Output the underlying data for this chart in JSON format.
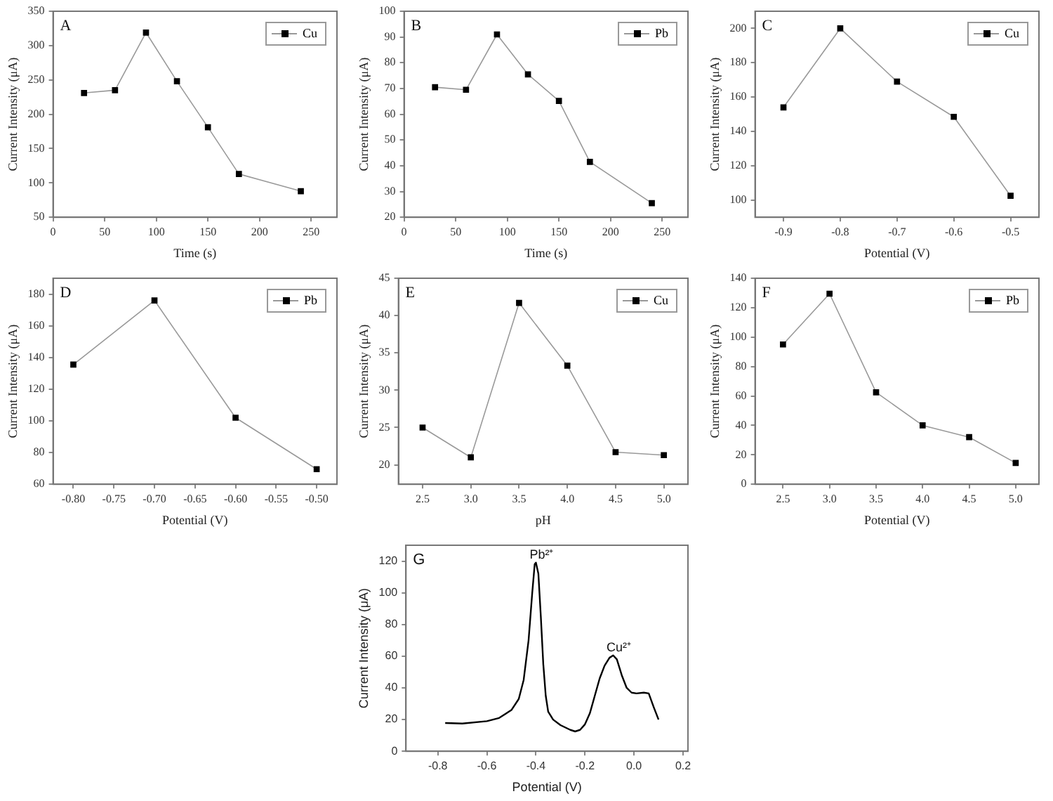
{
  "chart_data": [
    {
      "type": "line",
      "title": "A",
      "xlabel": "Time (s)",
      "ylabel": "Current Intensity (μA)",
      "x": [
        30,
        60,
        90,
        120,
        150,
        180,
        240
      ],
      "series": [
        {
          "name": "Cu",
          "color": "#000000",
          "values": [
            231,
            235,
            319,
            248,
            181,
            113,
            88
          ]
        }
      ],
      "xlim": [
        0,
        275
      ],
      "xticks": [
        0,
        50,
        100,
        150,
        200,
        250
      ],
      "ylim": [
        50,
        350
      ],
      "yticks": [
        50,
        100,
        150,
        200,
        250,
        300,
        350
      ],
      "legend": "top right",
      "marker": "square",
      "line_style": "solid"
    },
    {
      "type": "line",
      "title": "B",
      "xlabel": "Time (s)",
      "ylabel": "Current Intensity (μA)",
      "x": [
        30,
        60,
        90,
        120,
        150,
        180,
        240
      ],
      "series": [
        {
          "name": "Pb",
          "color": "#000000",
          "values": [
            70.5,
            69.5,
            91,
            75.5,
            65.2,
            41.5,
            25.5
          ]
        }
      ],
      "xlim": [
        0,
        275
      ],
      "xticks": [
        0,
        50,
        100,
        150,
        200,
        250
      ],
      "ylim": [
        20,
        100
      ],
      "yticks": [
        20,
        30,
        40,
        50,
        60,
        70,
        80,
        90,
        100
      ],
      "legend": "top right",
      "marker": "square",
      "line_style": "solid"
    },
    {
      "type": "line",
      "title": "C",
      "xlabel": "Potential (V)",
      "ylabel": "Current Intensity (μA)",
      "x": [
        -0.9,
        -0.8,
        -0.7,
        -0.6,
        -0.5
      ],
      "series": [
        {
          "name": "Cu",
          "color": "#000000",
          "values": [
            154,
            200,
            169,
            148.5,
            102.5
          ]
        }
      ],
      "xlim": [
        -0.95,
        -0.45
      ],
      "xticks": [
        -0.9,
        -0.8,
        -0.7,
        -0.6,
        -0.5
      ],
      "ylim": [
        90,
        210
      ],
      "yticks": [
        100,
        120,
        140,
        160,
        180,
        200
      ],
      "legend": "top right",
      "marker": "square",
      "line_style": "solid"
    },
    {
      "type": "line",
      "title": "D",
      "xlabel": "Potential (V)",
      "ylabel": "Current Intensity (μA)",
      "x": [
        -0.8,
        -0.7,
        -0.6,
        -0.5
      ],
      "series": [
        {
          "name": "Pb",
          "color": "#000000",
          "values": [
            135.5,
            176,
            102,
            69.5
          ]
        }
      ],
      "xlim": [
        -0.825,
        -0.475
      ],
      "xticks": [
        {
          "value": -0.8,
          "label": "-0.80"
        },
        {
          "value": -0.75,
          "label": "-0.75"
        },
        {
          "value": -0.7,
          "label": "-0.70"
        },
        {
          "value": -0.65,
          "label": "-0.65"
        },
        {
          "value": -0.6,
          "label": "-0.60"
        },
        {
          "value": -0.55,
          "label": "-0.55"
        },
        {
          "value": -0.5,
          "label": "-0.50"
        }
      ],
      "ylim": [
        60,
        190
      ],
      "yticks": [
        60,
        80,
        100,
        120,
        140,
        160,
        180
      ],
      "legend": "top right",
      "marker": "square",
      "line_style": "solid"
    },
    {
      "type": "line",
      "title": "E",
      "xlabel": "pH",
      "ylabel": "Current Intensity (μA)",
      "x": [
        2.5,
        3,
        3.5,
        4,
        4.5,
        5
      ],
      "series": [
        {
          "name": "Cu",
          "color": "#000000",
          "values": [
            25,
            21,
            41.7,
            33.3,
            21.7,
            21.3
          ]
        }
      ],
      "xlim": [
        2.25,
        5.25
      ],
      "xticks": [
        2.5,
        {
          "value": 3,
          "label": "3.0"
        },
        3.5,
        {
          "value": 4,
          "label": "4.0"
        },
        4.5,
        {
          "value": 5,
          "label": "5.0"
        }
      ],
      "ylim": [
        17.4,
        45
      ],
      "yticks": [
        20,
        25,
        30,
        35,
        40,
        45
      ],
      "legend": "top right",
      "marker": "square",
      "line_style": "solid"
    },
    {
      "type": "line",
      "title": "F",
      "xlabel": "Potential (V)",
      "ylabel": "Current Intensity (μA)",
      "x": [
        2.5,
        3,
        3.5,
        4,
        4.5,
        5
      ],
      "series": [
        {
          "name": "Pb",
          "color": "#000000",
          "values": [
            95,
            129.5,
            62.5,
            40,
            32,
            14.5
          ]
        }
      ],
      "xlim": [
        2.2,
        5.25
      ],
      "xticks": [
        2.5,
        {
          "value": 3,
          "label": "3.0"
        },
        3.5,
        {
          "value": 4,
          "label": "4.0"
        },
        4.5,
        {
          "value": 5,
          "label": "5.0"
        }
      ],
      "ylim": [
        0,
        140
      ],
      "yticks": [
        0,
        20,
        40,
        60,
        80,
        100,
        120,
        140
      ],
      "legend": "top right",
      "marker": "square",
      "line_style": "solid"
    },
    {
      "type": "line",
      "title": "G",
      "xlabel": "Potential (V)",
      "ylabel": "Current Intensity (μA)",
      "x": [
        -0.77,
        -0.7,
        -0.6,
        -0.55,
        -0.5,
        -0.47,
        -0.45,
        -0.43,
        -0.415,
        -0.405,
        -0.4,
        -0.39,
        -0.38,
        -0.37,
        -0.36,
        -0.35,
        -0.33,
        -0.3,
        -0.26,
        -0.24,
        -0.22,
        -0.2,
        -0.18,
        -0.16,
        -0.14,
        -0.12,
        -0.1,
        -0.085,
        -0.07,
        -0.05,
        -0.03,
        -0.01,
        0.01,
        0.04,
        0.06,
        0.08,
        0.1
      ],
      "series": [
        {
          "color": "#000000",
          "values": [
            17.8,
            17.5,
            19,
            21,
            26,
            33,
            45,
            70,
            100,
            118,
            119,
            112,
            85,
            55,
            35,
            25,
            20,
            16.5,
            13.5,
            12.5,
            13.5,
            17,
            24,
            35,
            46,
            54,
            59,
            60.5,
            58,
            48,
            40,
            37,
            36.5,
            37,
            36.5,
            28,
            20
          ]
        }
      ],
      "xlim": [
        -0.93,
        0.22
      ],
      "xticks": [
        -0.8,
        -0.6,
        -0.4,
        -0.2,
        {
          "value": 0,
          "label": "0.0"
        },
        0.2
      ],
      "ylim": [
        0,
        130
      ],
      "yticks": [
        0,
        20,
        40,
        60,
        80,
        100,
        120
      ],
      "marker": "none",
      "line_style": "solid",
      "annotations": [
        {
          "text": "Pb²⁺",
          "x": -0.4,
          "y": 119
        },
        {
          "text": "Cu²⁺",
          "x": -0.085,
          "y": 60.5
        }
      ]
    }
  ]
}
